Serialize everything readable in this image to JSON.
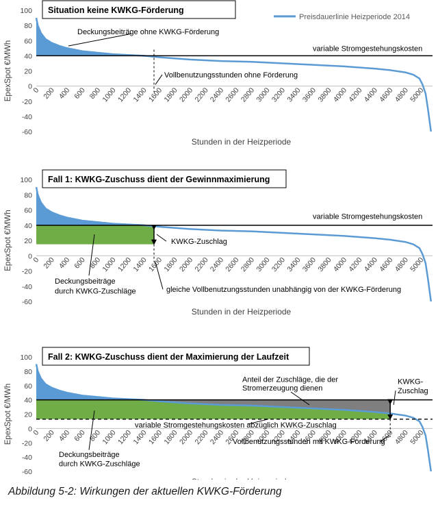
{
  "caption": "Abbildung 5-2: Wirkungen der aktuellen KWKG-Förderung",
  "chart_data": [
    {
      "type": "area",
      "title": "Situation keine KWKG-Förderung",
      "xlabel": "Stunden in der Heizperiode",
      "ylabel": "EpexSpot €/MWh",
      "xlim": [
        0,
        5150
      ],
      "ylim": [
        -60,
        100
      ],
      "yticks": [
        "100",
        "80",
        "60",
        "40",
        "20",
        "0",
        "-20",
        "-40",
        "-60"
      ],
      "xticks": [
        "0",
        "200",
        "400",
        "600",
        "800",
        "1000",
        "1200",
        "1400",
        "1600",
        "1800",
        "2000",
        "2200",
        "2400",
        "2600",
        "2800",
        "3000",
        "3200",
        "3400",
        "3600",
        "3800",
        "4000",
        "4200",
        "4400",
        "4600",
        "4800",
        "5000"
      ],
      "legend": "Preisdauerlinie Heizperiode 2014",
      "legend_position": "top-right",
      "series": [
        {
          "name": "Preisdauerlinie Heizperiode 2014",
          "color": "#5b9bd5",
          "x": [
            0,
            20,
            60,
            120,
            200,
            300,
            400,
            600,
            800,
            1000,
            1200,
            1400,
            1500,
            1600,
            2000,
            2400,
            2800,
            3200,
            3600,
            4000,
            4400,
            4600,
            4800,
            4900,
            4980,
            5020,
            5060,
            5090,
            5110,
            5130
          ],
          "y": [
            90,
            80,
            70,
            62,
            57,
            53,
            50,
            46,
            44,
            42,
            41,
            40,
            39,
            38,
            35,
            33,
            32,
            30,
            28,
            26,
            23,
            21,
            18,
            15,
            10,
            2,
            -10,
            -30,
            -45,
            -60
          ]
        }
      ],
      "reference_lines": [
        {
          "y": 40,
          "label": "variable Stromgestehungskosten"
        }
      ],
      "annotations": [
        {
          "text": "Deckungsbeiträge ohne KWKG-Förderung"
        },
        {
          "text": "variable Stromgestehungskosten"
        },
        {
          "text": "Vollbenutzungsstunden ohne Förderung",
          "x": 1530
        }
      ]
    },
    {
      "type": "area",
      "title": "Fall 1: KWKG-Zuschuss dient der Gewinnmaximierung",
      "xlabel": "Stunden in der Heizperiode",
      "ylabel": "EpexSpot €/MWh",
      "xlim": [
        0,
        5150
      ],
      "ylim": [
        -60,
        100
      ],
      "reference_lines": [
        {
          "y": 40,
          "label": "variable Stromgestehungskosten"
        }
      ],
      "green_band": {
        "x0": 0,
        "x1": 1530,
        "y0": 15,
        "y1": 40
      },
      "kwkg_arrow": {
        "x": 1530,
        "y0": 15,
        "y1": 40
      },
      "annotations": [
        {
          "text": "variable Stromgestehungskosten"
        },
        {
          "text": "KWKG-Zuschlag"
        },
        {
          "text": "Deckungsbeiträge"
        },
        {
          "text": "durch KWKG-Zuschläge"
        },
        {
          "text": "gleiche Vollbenutzungsstunden unabhängig von der KWKG-Förderung"
        }
      ]
    },
    {
      "type": "area",
      "title": "Fall 2: KWKG-Zuschuss dient der Maximierung der Laufzeit",
      "xlabel": "Stunden in der Heizperiode",
      "ylabel": "EpexSpot €/MWh",
      "xlim": [
        0,
        5150
      ],
      "ylim": [
        -60,
        100
      ],
      "reference_lines": [
        {
          "y": 40
        },
        {
          "y": 13,
          "style": "dashed",
          "label": "variable Stromgestehungskosten abzüglich KWKG-Zuschlag"
        }
      ],
      "green_band": {
        "x0": 0,
        "x1": 4600,
        "y0": 13,
        "y1": 40
      },
      "gray_area": {
        "x0": 1550,
        "x1": 4600
      },
      "kwkg_arrow": {
        "x": 4600,
        "y0": 13,
        "y1": 40
      },
      "annotations": [
        {
          "text": "Anteil der Zuschläge, die der"
        },
        {
          "text": "Stromerzeugung dienen"
        },
        {
          "text": "KWKG-"
        },
        {
          "text": "Zuschlag"
        },
        {
          "text": "variable Stromgestehungskosten abzüglich KWKG-Zuschlag"
        },
        {
          "text": "Vollbenutzungsstunden mit KWKG-Förderung"
        },
        {
          "text": "Deckungsbeiträge"
        },
        {
          "text": "durch KWKG-Zuschläge"
        }
      ]
    }
  ]
}
